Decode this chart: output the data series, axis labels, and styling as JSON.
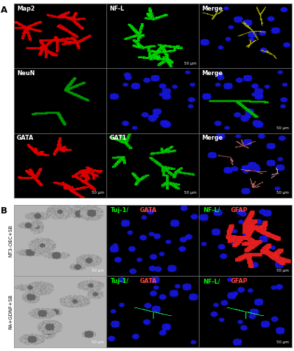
{
  "fig_width": 4.2,
  "fig_height": 5.0,
  "dpi": 100,
  "bg_color": "#ffffff",
  "panel_A_label": "A",
  "panel_B_label": "B",
  "A_labels": [
    [
      "Map2",
      "NF-L",
      "Merge"
    ],
    [
      "NeuN",
      "",
      "Merge"
    ],
    [
      "GATA",
      "GAT1",
      "Merge"
    ]
  ],
  "B_left_label_row1": "NT3-OEC+SB",
  "B_left_label_row2": "RA+GDNF+SB",
  "scale_bar_text": "50 μm",
  "label_fontsize": 6,
  "panel_label_fontsize": 9,
  "row_label_fontsize": 5,
  "text_color_white": "#ffffff",
  "text_color_green": "#00ff00",
  "text_color_red": "#ff4444"
}
